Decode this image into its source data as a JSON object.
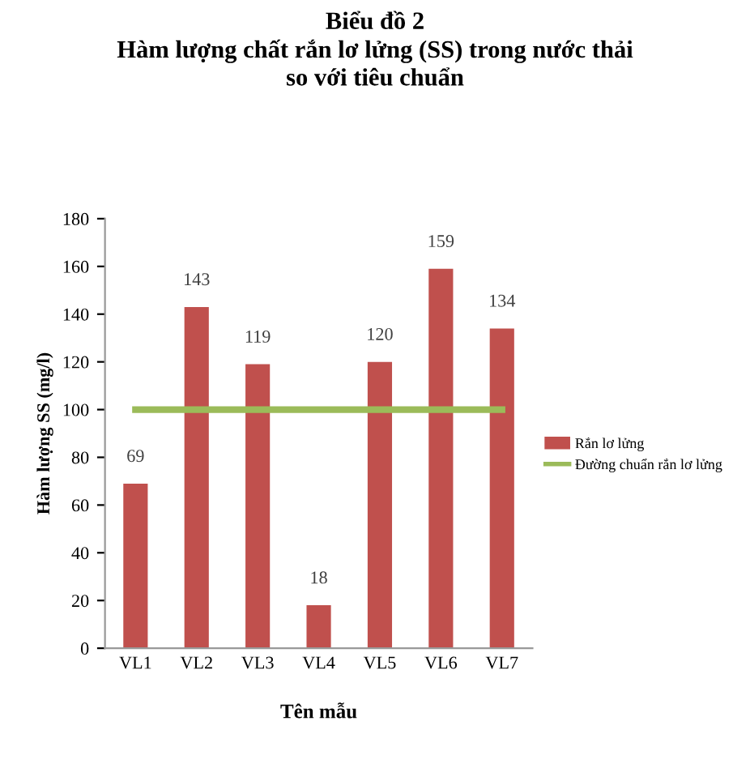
{
  "chart_data": {
    "type": "bar",
    "title": "Biểu đồ 2\nHàm lượng chất rắn lơ lửng (SS) trong nước thải\nso với tiêu chuẩn",
    "xlabel": "Tên mẫu",
    "ylabel": "Hàm lượng SS (mg/l)",
    "categories": [
      "VL1",
      "VL2",
      "VL3",
      "VL4",
      "VL5",
      "VL6",
      "VL7"
    ],
    "series": [
      {
        "name": "Rắn lơ lửng",
        "color": "#c0504d",
        "values": [
          69,
          143,
          119,
          18,
          120,
          159,
          134
        ],
        "data_labels": true
      },
      {
        "name": "Đường chuẩn rắn lơ lửng",
        "type": "line",
        "color": "#9bbb59",
        "values": [
          100,
          100,
          100,
          100,
          100,
          100,
          100
        ]
      }
    ],
    "ylim": [
      0,
      180
    ],
    "yticks": [
      0,
      20,
      40,
      60,
      80,
      100,
      120,
      140,
      160,
      180
    ],
    "grid": false,
    "legend": "right"
  }
}
